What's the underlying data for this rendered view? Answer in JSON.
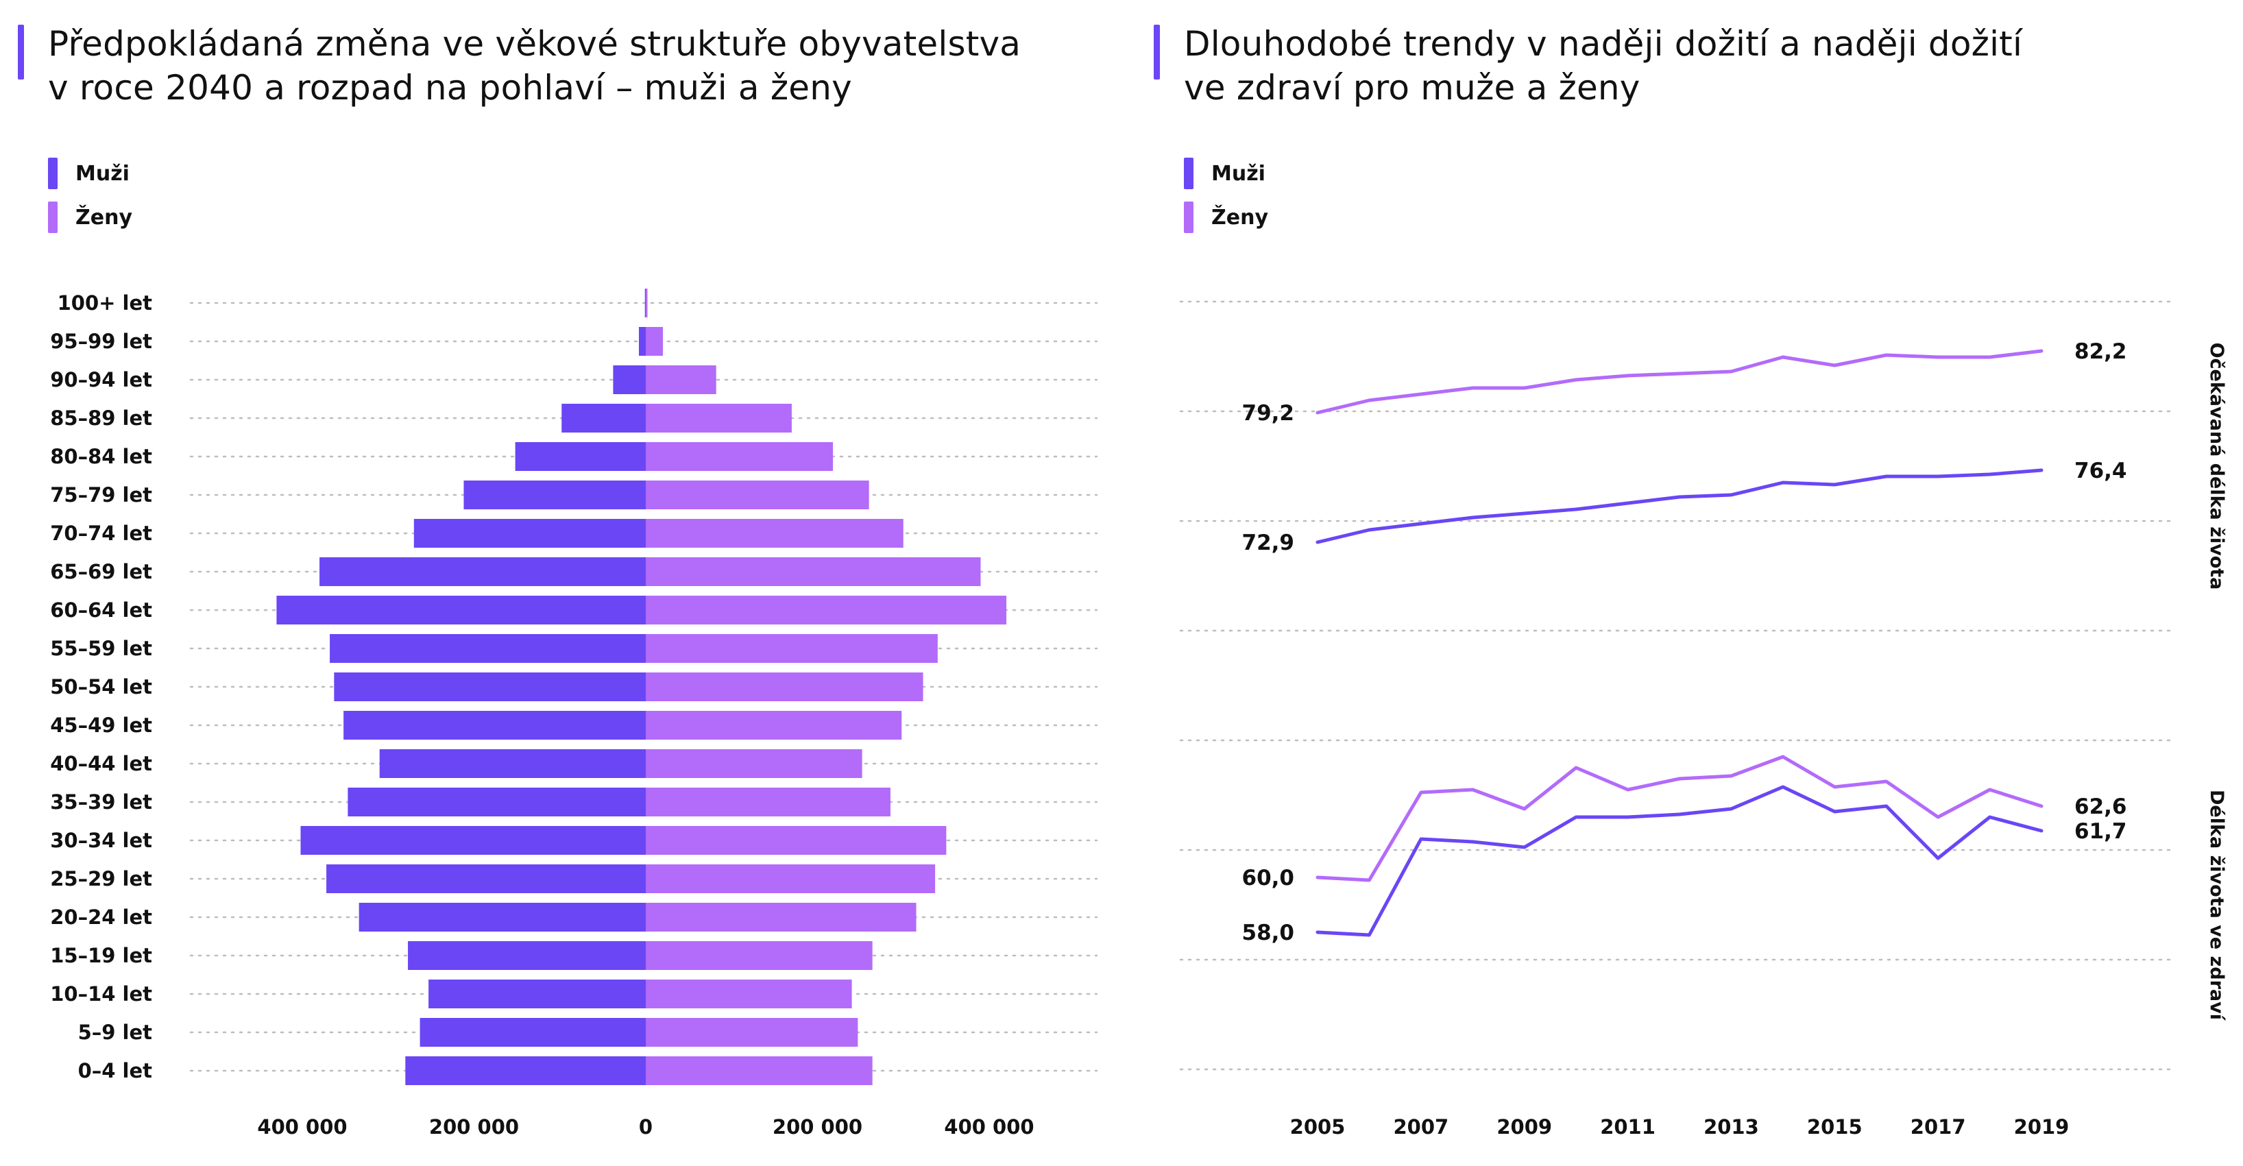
{
  "colors": {
    "male": "#6a46f5",
    "female": "#b36bfa",
    "grid": "#bdbdbd"
  },
  "left_chart": {
    "title_line1": "Předpokládaná změna ve věkové struktuře obyvatelstva",
    "title_line2": "v roce 2040 a rozpad na pohlaví – muži a ženy",
    "legend": {
      "male": "Muži",
      "female": "Ženy"
    }
  },
  "right_chart": {
    "title_line1": "Dlouhodobé trendy v naději dožití a naději dožití",
    "title_line2": "ve zdraví pro muže a ženy",
    "legend": {
      "male": "Muži",
      "female": "Ženy"
    }
  },
  "chart_data": [
    {
      "type": "bar",
      "orientation": "horizontal-diverging",
      "categories": [
        "100+ let",
        "95–99 let",
        "90–94 let",
        "85–89 let",
        "80–84 let",
        "75–79 let",
        "70–74 let",
        "65–69 let",
        "60–64 let",
        "55–59 let",
        "50–54 let",
        "45–49 let",
        "40–44 let",
        "35–39 let",
        "30–34 let",
        "25–29 let",
        "20–24 let",
        "15–19 let",
        "10–14 let",
        "5–9 let",
        "0–4 let"
      ],
      "series": [
        {
          "name": "Muži",
          "values": [
            1000,
            8000,
            38000,
            98000,
            152000,
            212000,
            270000,
            380000,
            430000,
            368000,
            363000,
            352000,
            310000,
            347000,
            402000,
            372000,
            334000,
            277000,
            253000,
            263000,
            280000
          ]
        },
        {
          "name": "Ženy",
          "values": [
            2000,
            20000,
            82000,
            170000,
            218000,
            260000,
            300000,
            390000,
            420000,
            340000,
            323000,
            298000,
            252000,
            285000,
            350000,
            337000,
            315000,
            264000,
            240000,
            247000,
            264000
          ]
        }
      ],
      "x_ticks": [
        "400 000",
        "200 000",
        "0",
        "200 000",
        "400 000"
      ],
      "xlim": [
        -500000,
        500000
      ],
      "grid": true,
      "legend_position": "top-left"
    },
    {
      "type": "line",
      "x": [
        2005,
        2006,
        2007,
        2008,
        2009,
        2010,
        2011,
        2012,
        2013,
        2014,
        2015,
        2016,
        2017,
        2018,
        2019
      ],
      "x_ticks": [
        "2005",
        "2007",
        "2009",
        "2011",
        "2013",
        "2015",
        "2017",
        "2019"
      ],
      "panels": [
        {
          "label": "Očekávaná délka života",
          "ylim": [
            68.6,
            84.6
          ],
          "series": [
            {
              "name": "Ženy",
              "values": [
                79.2,
                79.8,
                80.1,
                80.4,
                80.4,
                80.8,
                81.0,
                81.1,
                81.2,
                81.9,
                81.5,
                82.0,
                81.9,
                81.9,
                82.2
              ],
              "start_label": "79,2",
              "end_label": "82,2"
            },
            {
              "name": "Muži",
              "values": [
                72.9,
                73.5,
                73.8,
                74.1,
                74.3,
                74.5,
                74.8,
                75.1,
                75.2,
                75.8,
                75.7,
                76.1,
                76.1,
                76.2,
                76.4
              ],
              "start_label": "72,9",
              "end_label": "76,4"
            }
          ]
        },
        {
          "label": "Délka života ve zdraví",
          "ylim": [
            53.0,
            65.0
          ],
          "series": [
            {
              "name": "Ženy",
              "values": [
                60.0,
                59.9,
                63.1,
                63.2,
                62.5,
                64.0,
                63.2,
                63.6,
                63.7,
                64.4,
                63.3,
                63.5,
                62.2,
                63.2,
                62.6
              ],
              "start_label": "60,0",
              "end_label": "62,6"
            },
            {
              "name": "Muži",
              "values": [
                58.0,
                57.9,
                61.4,
                61.3,
                61.1,
                62.2,
                62.2,
                62.3,
                62.5,
                63.3,
                62.4,
                62.6,
                60.7,
                62.2,
                61.7
              ],
              "start_label": "58,0",
              "end_label": "61,7"
            }
          ]
        }
      ],
      "grid": true,
      "legend_position": "top-left"
    }
  ]
}
